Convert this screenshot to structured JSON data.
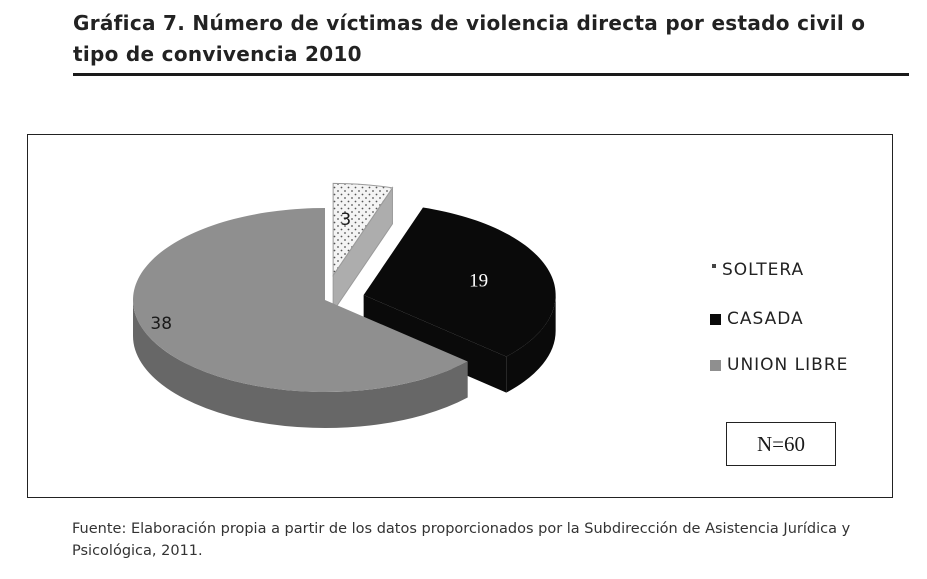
{
  "title": "Gráfica 7. Número de víctimas de violencia directa por estado civil o tipo de convivencia 2010",
  "source": "Fuente: Elaboración propia a partir de los datos proporcionados por la Subdirección de Asistencia Jurídica y Psicológica, 2011.",
  "n_label": "N=60",
  "chart_data": {
    "type": "pie",
    "style": "3d-exploded",
    "categories": [
      "SOLTERA",
      "CASADA",
      "UNION LIBRE"
    ],
    "values": [
      3,
      19,
      38
    ],
    "data_labels": [
      "3",
      "19",
      "38"
    ],
    "colors": [
      "#e8e8e8",
      "#0a0a0a",
      "#8f8f8f"
    ],
    "legend": [
      "SOLTERA",
      "CASADA",
      "UNION LIBRE"
    ],
    "legend_position": "right",
    "total": 60
  }
}
